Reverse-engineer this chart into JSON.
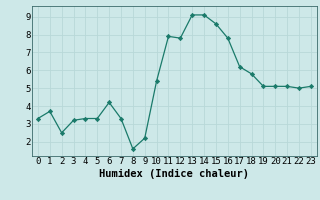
{
  "x": [
    0,
    1,
    2,
    3,
    4,
    5,
    6,
    7,
    8,
    9,
    10,
    11,
    12,
    13,
    14,
    15,
    16,
    17,
    18,
    19,
    20,
    21,
    22,
    23
  ],
  "y": [
    3.3,
    3.7,
    2.5,
    3.2,
    3.3,
    3.3,
    4.2,
    3.3,
    1.6,
    2.2,
    5.4,
    7.9,
    7.8,
    9.1,
    9.1,
    8.6,
    7.8,
    6.2,
    5.8,
    5.1,
    5.1,
    5.1,
    5.0,
    5.1
  ],
  "xlabel": "Humidex (Indice chaleur)",
  "ylim": [
    1.2,
    9.6
  ],
  "xlim": [
    -0.5,
    23.5
  ],
  "line_color": "#1a7a6a",
  "marker_color": "#1a7a6a",
  "bg_color": "#cde8e8",
  "grid_color": "#b8d8d8",
  "tick_labels": [
    "0",
    "1",
    "2",
    "3",
    "4",
    "5",
    "6",
    "7",
    "8",
    "9",
    "10",
    "11",
    "12",
    "13",
    "14",
    "15",
    "16",
    "17",
    "18",
    "19",
    "20",
    "21",
    "22",
    "23"
  ],
  "yticks": [
    2,
    3,
    4,
    5,
    6,
    7,
    8,
    9
  ],
  "xlabel_fontsize": 7.5,
  "tick_fontsize": 6.5
}
